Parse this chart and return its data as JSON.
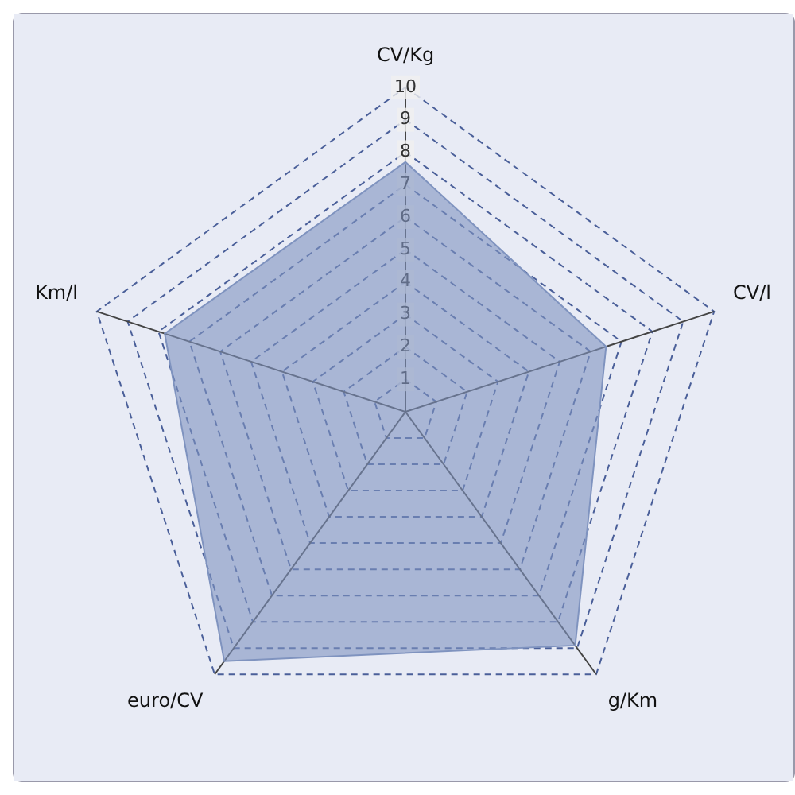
{
  "chart_data": {
    "type": "radar",
    "categories": [
      "CV/Kg",
      "CV/l",
      "g/Km",
      "euro/CV",
      "Km/l"
    ],
    "series": [
      {
        "color": "#7f93bf",
        "values": [
          7.7,
          6.5,
          8.9,
          9.5,
          7.8
        ]
      }
    ],
    "ylim": [
      0,
      10
    ],
    "yticks": [
      1,
      2,
      3,
      4,
      5,
      6,
      7,
      8,
      9,
      10
    ],
    "grid": true,
    "marker": "none"
  }
}
